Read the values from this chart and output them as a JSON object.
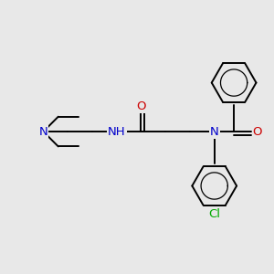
{
  "background_color": "#e8e8e8",
  "figsize": [
    3.0,
    3.0
  ],
  "dpi": 100,
  "atom_colors": {
    "N": "#0000cc",
    "O": "#cc0000",
    "Cl": "#00aa00"
  },
  "bond_color": "#000000",
  "bond_width": 1.4,
  "font_size": 9.5
}
